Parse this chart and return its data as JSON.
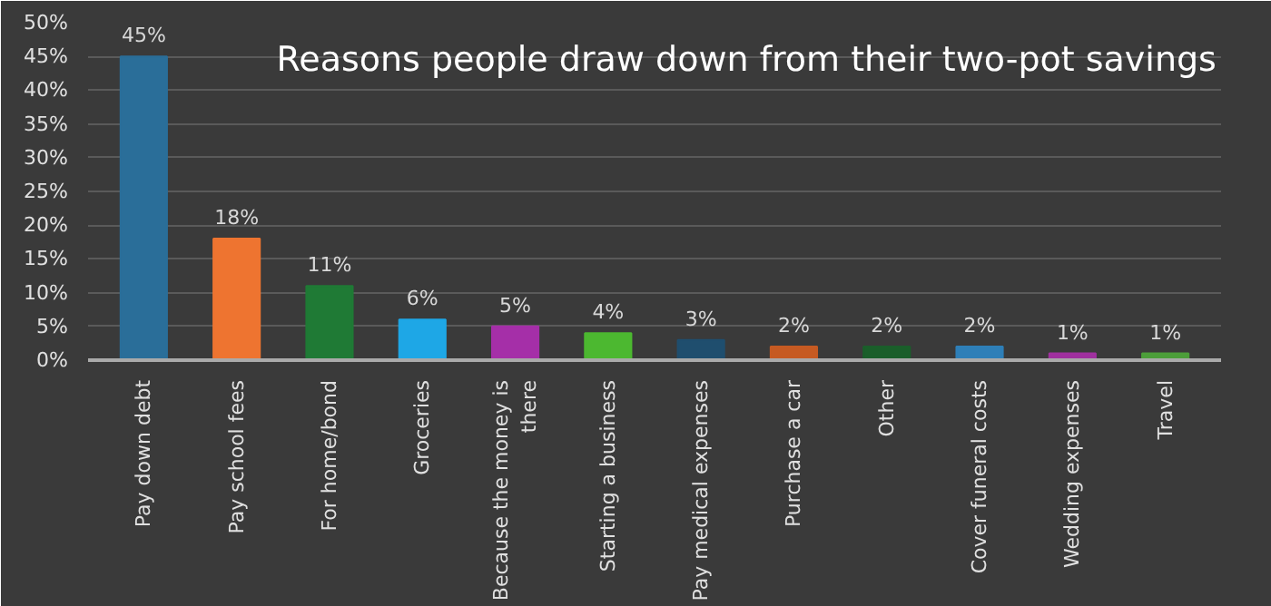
{
  "chart_data": {
    "type": "bar",
    "title": "Reasons people draw down from their two-pot savings",
    "categories": [
      "Pay down debt",
      "Pay school fees",
      "For home/bond",
      "Groceries",
      "Because the money is there",
      "Starting a business",
      "Pay medical expenses",
      "Purchase a car",
      "Other",
      "Cover funeral costs",
      "Wedding expenses",
      "Travel"
    ],
    "values": [
      45,
      18,
      11,
      6,
      5,
      4,
      3,
      2,
      2,
      2,
      1,
      1
    ],
    "colors": [
      "#2a6e99",
      "#ee7430",
      "#1f7a35",
      "#1ea7e6",
      "#a52fa8",
      "#4cb830",
      "#1f4e6e",
      "#c65a22",
      "#1a5e2a",
      "#2e7fb8",
      "#a0309f",
      "#4c9e3a"
    ],
    "ylim": [
      0,
      50
    ],
    "yticks": [
      {
        "value": 0,
        "label": "0%"
      },
      {
        "value": 5,
        "label": "5%"
      },
      {
        "value": 10,
        "label": "10%"
      },
      {
        "value": 15,
        "label": "15%"
      },
      {
        "value": 20,
        "label": "20%"
      },
      {
        "value": 25,
        "label": "25%"
      },
      {
        "value": 30,
        "label": "30%"
      },
      {
        "value": 35,
        "label": "35%"
      },
      {
        "value": 40,
        "label": "40%"
      },
      {
        "value": 45,
        "label": "45%"
      },
      {
        "value": 50,
        "label": "50%"
      }
    ],
    "value_labels": [
      "45%",
      "18%",
      "11%",
      "6%",
      "5%",
      "4%",
      "3%",
      "2%",
      "2%",
      "2%",
      "1%",
      "1%"
    ],
    "grid": "y"
  }
}
